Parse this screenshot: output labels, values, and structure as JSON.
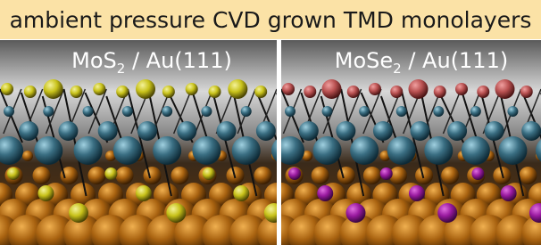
{
  "title": "ambient pressure CVD grown TMD monolayers",
  "panels": [
    {
      "label": {
        "prefix": "MoS",
        "subscript": "2",
        "suffix": " / Au(111)"
      }
    },
    {
      "label": {
        "prefix": "MoSe",
        "subscript": "2",
        "suffix": " / Au(111)"
      }
    }
  ]
}
